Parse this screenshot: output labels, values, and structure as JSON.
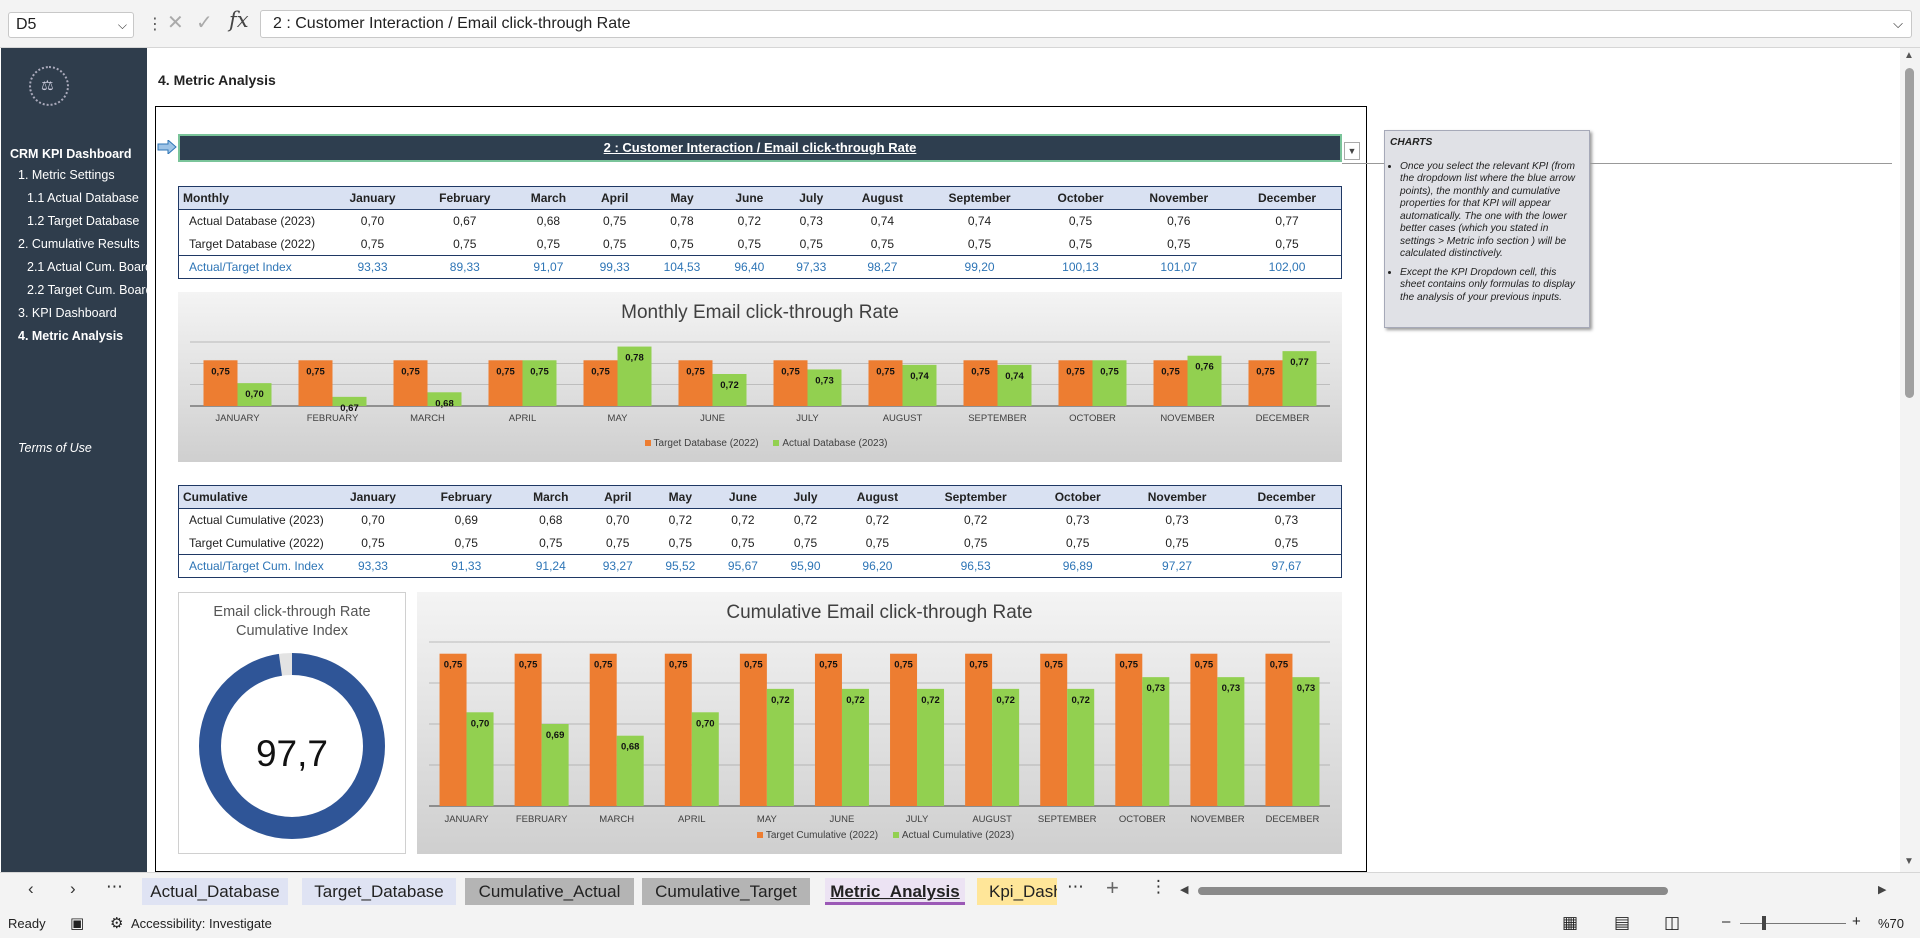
{
  "formula_bar": {
    "name_box": "D5",
    "fx_label": "fx",
    "formula": "2 : Customer Interaction / Email click-through Rate"
  },
  "sidebar": {
    "title": "CRM KPI Dashboard",
    "items": [
      {
        "label": "1. Metric Settings"
      },
      {
        "label": "1.1 Actual Database"
      },
      {
        "label": "1.2 Target Database"
      },
      {
        "label": "2. Cumulative Results"
      },
      {
        "label": "2.1 Actual Cum. Board"
      },
      {
        "label": "2.2 Target Cum. Board"
      },
      {
        "label": "3. KPI Dashboard"
      },
      {
        "label": "4. Metric Analysis"
      }
    ],
    "terms": "Terms of Use"
  },
  "sheet": {
    "title": "4. Metric Analysis",
    "kpi_header": "2 : Customer Interaction / Email click-through Rate"
  },
  "months": [
    "January",
    "February",
    "March",
    "April",
    "May",
    "June",
    "July",
    "August",
    "September",
    "October",
    "November",
    "December"
  ],
  "months_upper": [
    "JANUARY",
    "FEBRUARY",
    "MARCH",
    "APRIL",
    "MAY",
    "JUNE",
    "JULY",
    "AUGUST",
    "SEPTEMBER",
    "OCTOBER",
    "NOVEMBER",
    "DECEMBER"
  ],
  "monthly_table": {
    "header": "Monthly",
    "rows": [
      {
        "label": "Actual Database (2023)",
        "values": [
          "0,70",
          "0,67",
          "0,68",
          "0,75",
          "0,78",
          "0,72",
          "0,73",
          "0,74",
          "0,74",
          "0,75",
          "0,76",
          "0,77"
        ]
      },
      {
        "label": "Target Database (2022)",
        "values": [
          "0,75",
          "0,75",
          "0,75",
          "0,75",
          "0,75",
          "0,75",
          "0,75",
          "0,75",
          "0,75",
          "0,75",
          "0,75",
          "0,75"
        ]
      },
      {
        "label": "Actual/Target Index",
        "values": [
          "93,33",
          "89,33",
          "91,07",
          "99,33",
          "104,53",
          "96,40",
          "97,33",
          "98,27",
          "99,20",
          "100,13",
          "101,07",
          "102,00"
        ]
      }
    ]
  },
  "cumulative_table": {
    "header": "Cumulative",
    "rows": [
      {
        "label": "Actual Cumulative (2023)",
        "values": [
          "0,70",
          "0,69",
          "0,68",
          "0,70",
          "0,72",
          "0,72",
          "0,72",
          "0,72",
          "0,72",
          "0,73",
          "0,73",
          "0,73"
        ]
      },
      {
        "label": "Target Cumulative (2022)",
        "values": [
          "0,75",
          "0,75",
          "0,75",
          "0,75",
          "0,75",
          "0,75",
          "0,75",
          "0,75",
          "0,75",
          "0,75",
          "0,75",
          "0,75"
        ]
      },
      {
        "label": "Actual/Target Cum. Index",
        "values": [
          "93,33",
          "91,33",
          "91,24",
          "93,27",
          "95,52",
          "95,67",
          "95,90",
          "96,20",
          "96,53",
          "96,89",
          "97,27",
          "97,67"
        ]
      }
    ]
  },
  "chart_data": [
    {
      "type": "bar",
      "title": "Monthly Email click-through Rate",
      "categories": [
        "JANUARY",
        "FEBRUARY",
        "MARCH",
        "APRIL",
        "MAY",
        "JUNE",
        "JULY",
        "AUGUST",
        "SEPTEMBER",
        "OCTOBER",
        "NOVEMBER",
        "DECEMBER"
      ],
      "series": [
        {
          "name": "Target Database (2022)",
          "color": "#ed7d31",
          "values": [
            0.75,
            0.75,
            0.75,
            0.75,
            0.75,
            0.75,
            0.75,
            0.75,
            0.75,
            0.75,
            0.75,
            0.75
          ]
        },
        {
          "name": "Actual Database (2023)",
          "color": "#92d050",
          "values": [
            0.7,
            0.67,
            0.68,
            0.75,
            0.78,
            0.72,
            0.73,
            0.74,
            0.74,
            0.75,
            0.76,
            0.77
          ]
        }
      ],
      "ylim": [
        0.65,
        0.79
      ],
      "grid": true,
      "legend": "bottom"
    },
    {
      "type": "bar",
      "title": "Cumulative Email click-through Rate",
      "categories": [
        "JANUARY",
        "FEBRUARY",
        "MARCH",
        "APRIL",
        "MAY",
        "JUNE",
        "JULY",
        "AUGUST",
        "SEPTEMBER",
        "OCTOBER",
        "NOVEMBER",
        "DECEMBER"
      ],
      "series": [
        {
          "name": "Target Cumulative (2022)",
          "color": "#ed7d31",
          "values": [
            0.75,
            0.75,
            0.75,
            0.75,
            0.75,
            0.75,
            0.75,
            0.75,
            0.75,
            0.75,
            0.75,
            0.75
          ]
        },
        {
          "name": "Actual Cumulative (2023)",
          "color": "#92d050",
          "values": [
            0.7,
            0.69,
            0.68,
            0.7,
            0.72,
            0.72,
            0.72,
            0.72,
            0.72,
            0.73,
            0.73,
            0.73
          ]
        }
      ],
      "ylim": [
        0.62,
        0.76
      ],
      "grid": true,
      "legend": "bottom"
    },
    {
      "type": "pie",
      "title": "Email click-through Rate Cumulative Index",
      "value": 97.7,
      "value_label": "97,7",
      "max": 100,
      "color": "#2f5597"
    }
  ],
  "donut": {
    "title_line1": "Email click-through Rate",
    "title_line2": "Cumulative Index",
    "value_label": "97,7"
  },
  "note": {
    "title": "CHARTS",
    "bullets": [
      "Once you select the relevant KPI (from the dropdown list where the blue arrow points), the monthly and cumulative properties for that KPI will appear automatically. The one with the lower better cases (which you stated in settings > Metric info section ) will be calculated distinctively.",
      "Except the KPI Dropdown cell, this sheet contains only formulas to display the analysis of your previous inputs."
    ]
  },
  "tabs": [
    {
      "label": "Actual_Database",
      "bg": "#dfe3f3"
    },
    {
      "label": "Target_Database",
      "bg": "#dfe3f3"
    },
    {
      "label": "Cumulative_Actual",
      "bg": "#b4b4b4"
    },
    {
      "label": "Cumulative_Target",
      "bg": "#b4b4b4"
    },
    {
      "label": "Metric_Analysis",
      "bg": "#ece3f3",
      "active": true
    },
    {
      "label": "Kpi_Dash",
      "bg": "#ffe699"
    }
  ],
  "status": {
    "ready": "Ready",
    "accessibility": "Accessibility: Investigate",
    "zoom": "%70"
  }
}
